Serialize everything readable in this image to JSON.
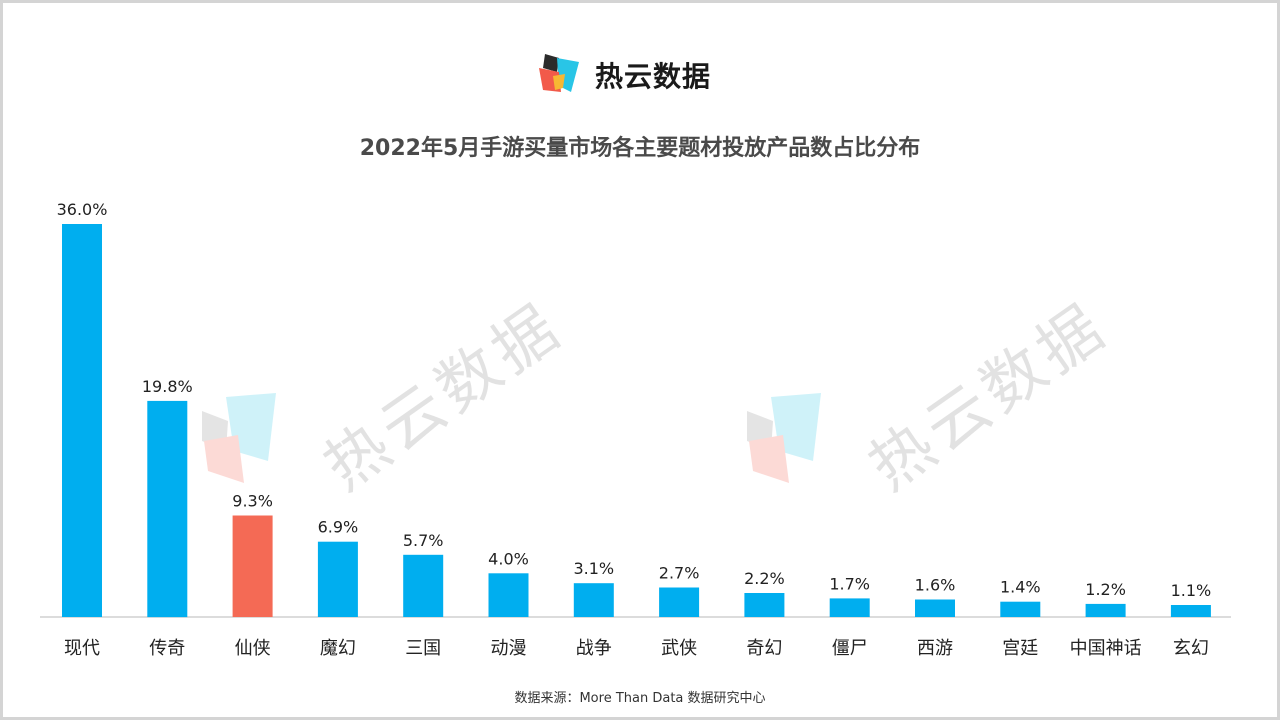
{
  "brand": {
    "name": "热云数据",
    "watermark_text": "热云数据"
  },
  "colors": {
    "primary": "#00aeef",
    "highlight": "#f46a55",
    "text": "#333333"
  },
  "chart_data": {
    "type": "bar",
    "title": "2022年5月手游买量市场各主要题材投放产品数占比分布",
    "categories": [
      "现代",
      "传奇",
      "仙侠",
      "魔幻",
      "三国",
      "动漫",
      "战争",
      "武侠",
      "奇幻",
      "僵尸",
      "西游",
      "宫廷",
      "中国神话",
      "玄幻"
    ],
    "values": [
      36.0,
      19.8,
      9.3,
      6.9,
      5.7,
      4.0,
      3.1,
      2.7,
      2.2,
      1.7,
      1.6,
      1.4,
      1.2,
      1.1
    ],
    "value_labels": [
      "36.0%",
      "19.8%",
      "9.3%",
      "6.9%",
      "5.7%",
      "4.0%",
      "3.1%",
      "2.7%",
      "2.2%",
      "1.7%",
      "1.6%",
      "1.4%",
      "1.2%",
      "1.1%"
    ],
    "highlight_category": "仙侠",
    "unit": "%",
    "ylim": [
      0,
      36.0
    ],
    "grid": false,
    "legend": "none"
  },
  "footer": {
    "source": "数据来源：More Than Data 数据研究中心"
  }
}
